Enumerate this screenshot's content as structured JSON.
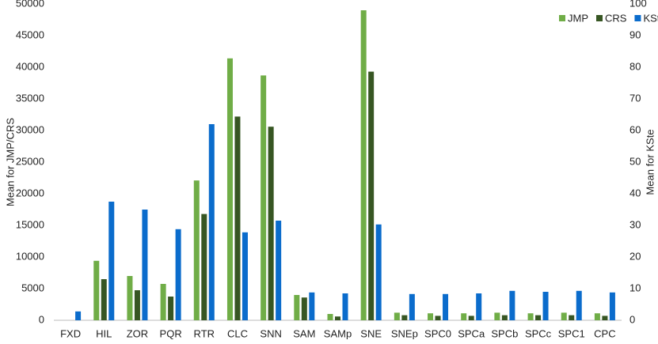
{
  "chart_data": {
    "type": "bar",
    "categories": [
      "FXD",
      "HIL",
      "ZOR",
      "PQR",
      "RTR",
      "CLC",
      "SNN",
      "SAM",
      "SAMp",
      "SNE",
      "SNEp",
      "SPC0",
      "SPCa",
      "SPCb",
      "SPCc",
      "SPC1",
      "CPC"
    ],
    "series": [
      {
        "name": "JMP",
        "color": "#70ad47",
        "values": [
          0,
          9400,
          7000,
          5750,
          22100,
          41400,
          38700,
          4000,
          1000,
          49000,
          1200,
          1100,
          1100,
          1200,
          1100,
          1200,
          1100
        ]
      },
      {
        "name": "CRS",
        "color": "#375623",
        "values": [
          0,
          6500,
          4750,
          3750,
          16800,
          32200,
          30600,
          3600,
          600,
          39300,
          800,
          700,
          700,
          800,
          800,
          800,
          700
        ]
      },
      {
        "name": "KSte",
        "color": "#0b6ccc",
        "axis": "y2",
        "values": [
          2.8,
          37.5,
          35,
          28.8,
          62,
          27.8,
          31.5,
          8.8,
          8.5,
          30.3,
          8.3,
          8.3,
          8.5,
          9.3,
          9,
          9.3,
          8.8
        ]
      }
    ],
    "ylabel": "Mean for JMP/CRS",
    "y2label": "Mean for KSte",
    "ylim": [
      0,
      50000
    ],
    "yticks": [
      0,
      5000,
      10000,
      15000,
      20000,
      25000,
      30000,
      35000,
      40000,
      45000,
      50000
    ],
    "y2lim": [
      0,
      100
    ],
    "y2ticks": [
      0,
      10,
      20,
      30,
      40,
      50,
      60,
      70,
      80,
      90,
      100
    ],
    "legend": "top-right",
    "grid": false
  }
}
